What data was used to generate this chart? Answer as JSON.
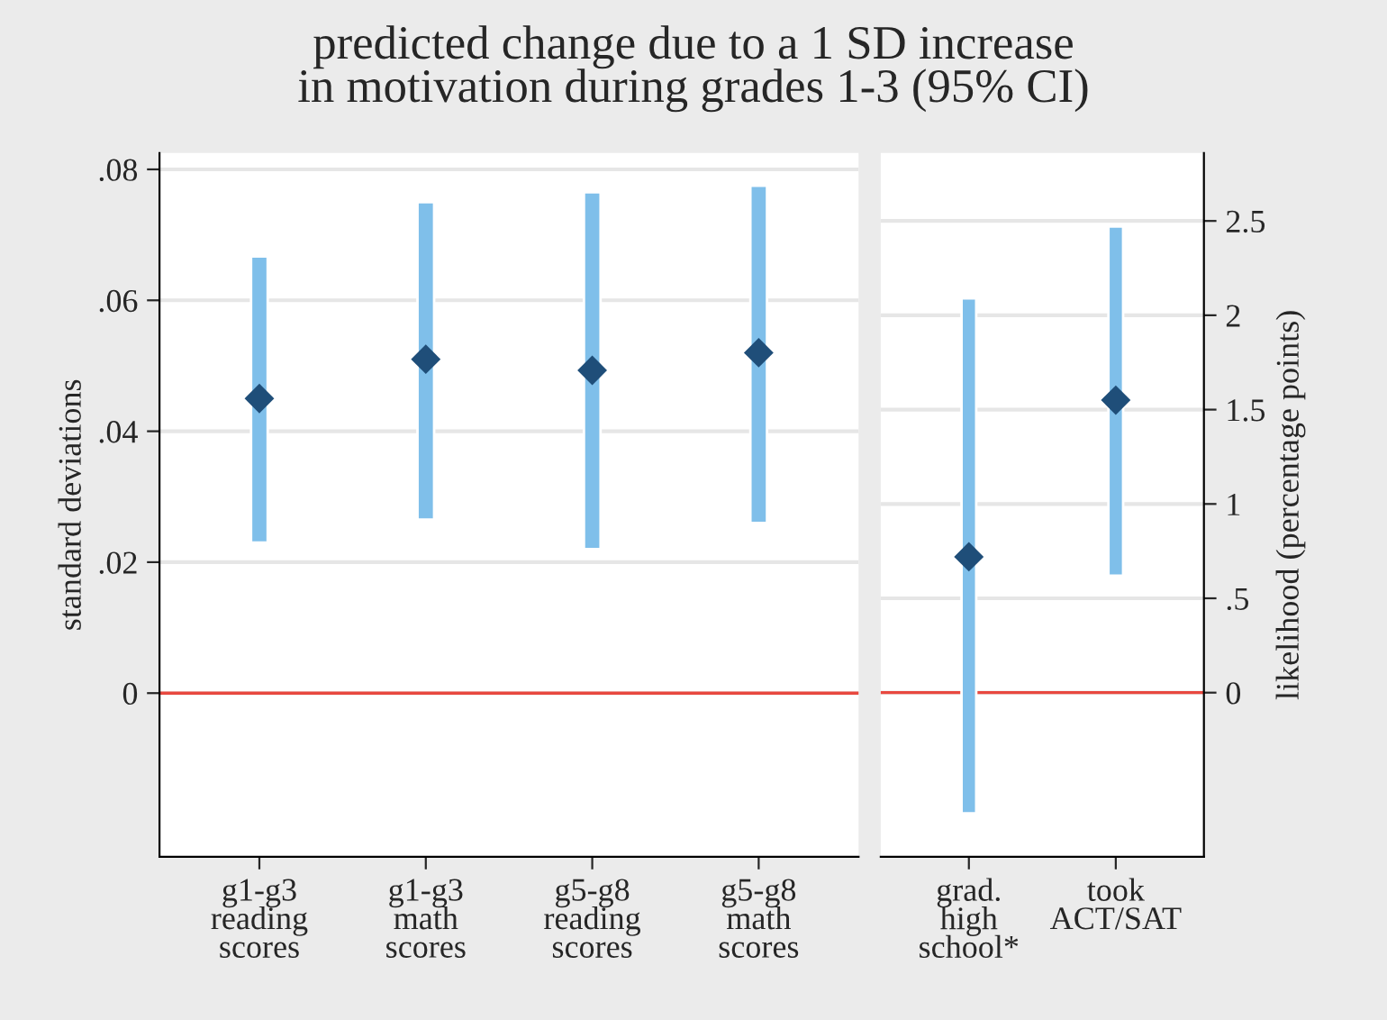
{
  "chart_data": [
    {
      "type": "scatter",
      "title": "predicted change due to a 1 SD increase\nin motivation during grades 1-3 (95% CI)",
      "ylabel": "standard deviations",
      "categories": [
        "g1-g3\nreading\nscores",
        "g1-g3\nmath\nscores",
        "g5-g8\nreading\nscores",
        "g5-g8\nmath\nscores"
      ],
      "series": [
        {
          "type": "bar",
          "color": "#7fbfea",
          "base": [
            0.023,
            0.0265,
            0.022,
            0.026
          ],
          "values": [
            0.0437,
            0.0485,
            0.0545,
            0.0515
          ]
        },
        {
          "color": "#1f4e79",
          "values": [
            0.045,
            0.051,
            0.0493,
            0.052
          ]
        }
      ],
      "marker": "diamond",
      "grid": "y",
      "ylim": [
        -0.025,
        0.0825
      ],
      "yticks": [
        0,
        {
          "value": 0.02,
          "label": ".02"
        },
        {
          "value": 0.04,
          "label": ".04"
        },
        {
          "value": 0.06,
          "label": ".06"
        },
        {
          "value": 0.08,
          "label": ".08"
        }
      ],
      "ref_lines": [
        {
          "axis": "y",
          "value": 0,
          "color": "#e8483f"
        }
      ]
    },
    {
      "type": "scatter",
      "y2label": "likelihood (percentage points)",
      "categories": [
        "grad.\nhigh\nschool*",
        "took\nACT/SAT"
      ],
      "series": [
        {
          "type": "bar",
          "axis": "y2",
          "color": "#7fbfea",
          "base": [
            -0.64,
            0.62
          ],
          "values": [
            2.73,
            1.85
          ]
        },
        {
          "axis": "y2",
          "color": "#1f4e79",
          "values": [
            0.72,
            1.55
          ]
        }
      ],
      "marker": "diamond",
      "grid": "y",
      "y2lim": [
        -0.87,
        2.86
      ],
      "y2ticks": [
        0,
        {
          "value": 0.5,
          "label": ".5"
        },
        1,
        1.5,
        2,
        2.5
      ],
      "ref_lines": [
        {
          "axis": "y2",
          "value": 0,
          "color": "#e8483f"
        }
      ]
    }
  ]
}
